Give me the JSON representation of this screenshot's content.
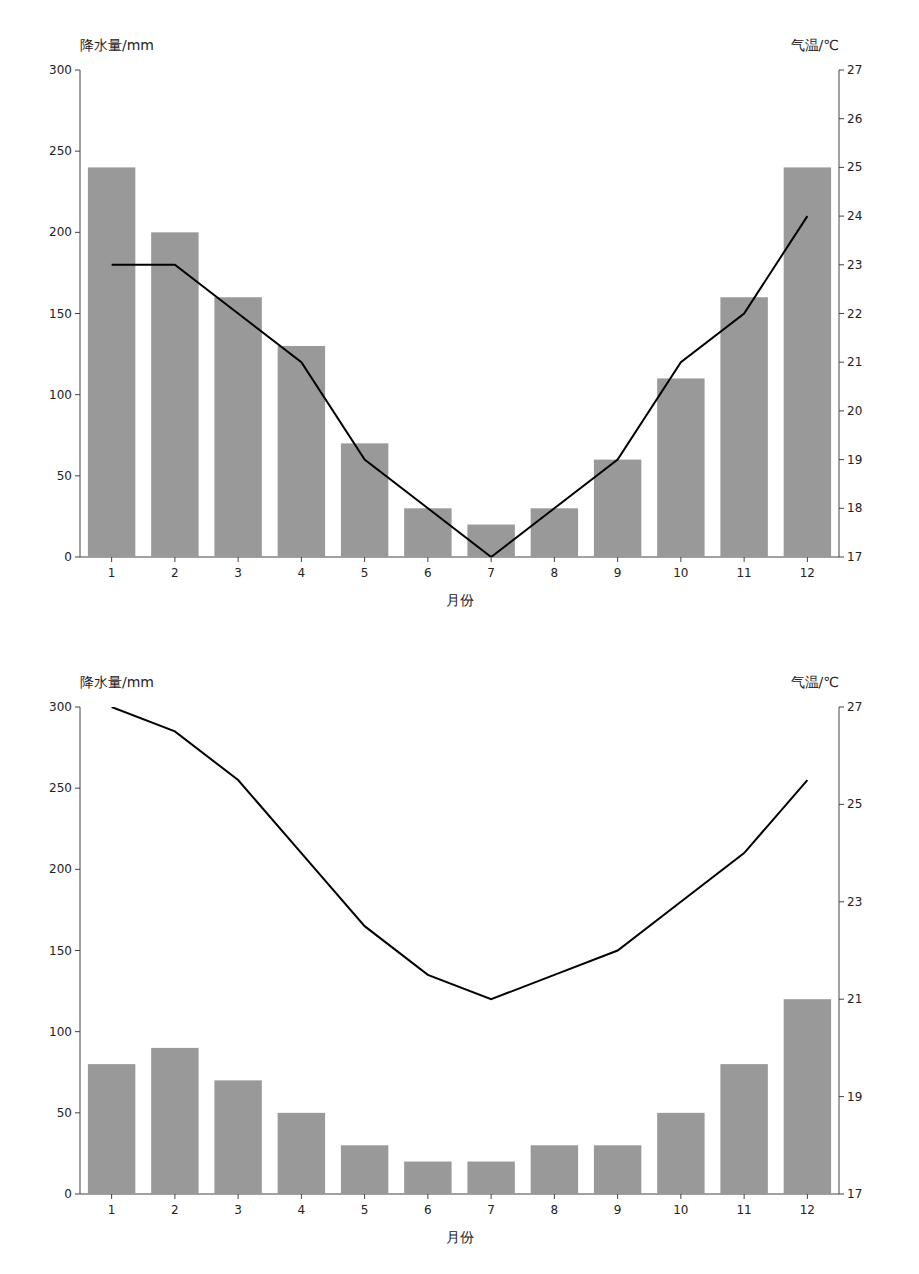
{
  "chart_data": [
    {
      "type": "bar",
      "x_label": "月份",
      "y_label": "降水量/mm",
      "y2_label": "气温/℃",
      "categories": [
        "1",
        "2",
        "3",
        "4",
        "5",
        "6",
        "7",
        "8",
        "9",
        "10",
        "11",
        "12"
      ],
      "series": [
        {
          "type": "bar",
          "color": "#999999",
          "values": [
            240,
            200,
            160,
            130,
            70,
            30,
            20,
            30,
            60,
            110,
            160,
            240
          ]
        },
        {
          "type": "line",
          "axis": "y2",
          "color": "#000000",
          "line_style": "solid",
          "values": [
            23.0,
            23.0,
            22.0,
            21.0,
            19.0,
            18.0,
            17.0,
            18.0,
            19.0,
            21.0,
            22.0,
            24.0
          ]
        }
      ],
      "ylim": [
        0,
        300
      ],
      "yticks": [
        0,
        50,
        100,
        150,
        200,
        250,
        300
      ],
      "y2lim": [
        17,
        27
      ],
      "y2ticks": [
        17,
        18,
        19,
        20,
        21,
        22,
        23,
        24,
        25,
        26,
        27
      ],
      "grid": false
    },
    {
      "type": "bar",
      "x_label": "月份",
      "y_label": "降水量/mm",
      "y2_label": "气温/℃",
      "categories": [
        "1",
        "2",
        "3",
        "4",
        "5",
        "6",
        "7",
        "8",
        "9",
        "10",
        "11",
        "12"
      ],
      "series": [
        {
          "type": "bar",
          "color": "#999999",
          "values": [
            80,
            90,
            70,
            50,
            30,
            20,
            20,
            30,
            30,
            50,
            80,
            120
          ]
        },
        {
          "type": "line",
          "axis": "y2",
          "color": "#000000",
          "line_style": "solid",
          "values": [
            27.0,
            26.5,
            25.5,
            24.0,
            22.5,
            21.5,
            21.0,
            21.5,
            22.0,
            23.0,
            24.0,
            25.5
          ]
        }
      ],
      "ylim": [
        0,
        300
      ],
      "yticks": [
        0,
        50,
        100,
        150,
        200,
        250,
        300
      ],
      "y2lim": [
        17,
        27
      ],
      "y2ticks": [
        17,
        19,
        21,
        23,
        25,
        27
      ],
      "grid": false
    }
  ]
}
